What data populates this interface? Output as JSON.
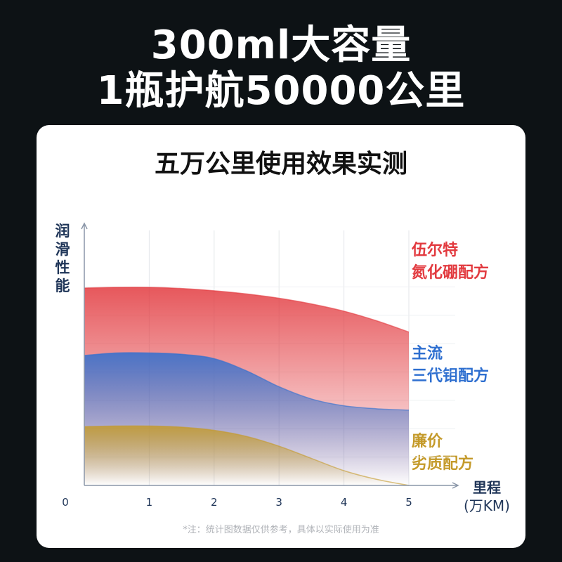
{
  "headline": {
    "line1": "300ml大容量",
    "line2": "1瓶护航50000公里"
  },
  "card": {
    "title": "五万公里使用效果实测",
    "footnote": "*注：统计图数据仅供参考，具体以实际使用为准",
    "accent_color": "#c8323a"
  },
  "chart_data": {
    "type": "area",
    "title": "五万公里使用效果实测",
    "ylabel": "润滑性能",
    "xlabel_line1": "里程",
    "xlabel_line2": "(万KM)",
    "x_ticks": [
      "0",
      "1",
      "2",
      "3",
      "4",
      "5"
    ],
    "xlim": [
      0,
      5
    ],
    "ylim": [
      0,
      100
    ],
    "grid": true,
    "series": [
      {
        "name_line1": "伍尔特",
        "name_line2": "氮化硼配方",
        "color": "#e23a3f",
        "x": [
          0,
          0.5,
          1,
          1.5,
          2,
          2.5,
          3,
          3.5,
          4,
          4.5,
          5
        ],
        "y": [
          87,
          87.3,
          87.3,
          86.8,
          85.8,
          84.4,
          82.5,
          80,
          76.8,
          72.6,
          67.6
        ]
      },
      {
        "name_line1": "主流",
        "name_line2": "三代钼配方",
        "color": "#2e6fd0",
        "x": [
          0,
          0.5,
          1,
          1.5,
          2,
          2.5,
          3,
          3.5,
          4,
          4.5,
          5
        ],
        "y": [
          57.3,
          58.4,
          58.4,
          57.8,
          55.9,
          50.5,
          43.5,
          38.1,
          35.1,
          33.8,
          33.2
        ]
      },
      {
        "name_line1": "廉价",
        "name_line2": "劣质配方",
        "color": "#c49a2a",
        "x": [
          0,
          0.5,
          1,
          1.5,
          2,
          2.5,
          3,
          3.5,
          4,
          4.5,
          5
        ],
        "y": [
          25.9,
          26.2,
          26.2,
          25.7,
          24.3,
          21.6,
          17.3,
          11.9,
          6.5,
          2.7,
          0
        ]
      }
    ]
  }
}
